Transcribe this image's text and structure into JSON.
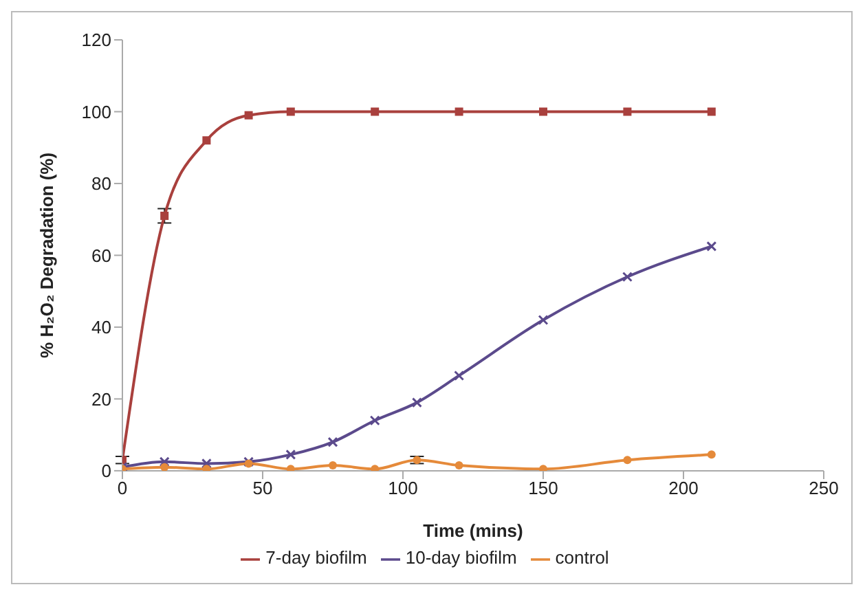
{
  "chart_data": {
    "type": "line",
    "xlabel": "Time (mins)",
    "ylabel": "% H₂O₂ Degradation (%)",
    "xlim": [
      0,
      250
    ],
    "xticks": [
      0,
      50,
      100,
      150,
      200,
      250
    ],
    "ylim": [
      0,
      120
    ],
    "yticks": [
      0,
      20,
      40,
      60,
      80,
      100,
      120
    ],
    "legend": "bottom",
    "series": [
      {
        "name": "7-day biofilm",
        "color": "#a9403d",
        "marker": "square",
        "x": [
          0,
          15,
          30,
          45,
          60,
          90,
          120,
          150,
          180,
          210
        ],
        "values": [
          3,
          71,
          92,
          99,
          100,
          100,
          100,
          100,
          100,
          100
        ],
        "errors": [
          1,
          2,
          null,
          null,
          null,
          null,
          null,
          null,
          null,
          null
        ]
      },
      {
        "name": "10-day biofilm",
        "color": "#5b4a8c",
        "marker": "cross",
        "x": [
          0,
          15,
          30,
          45,
          60,
          75,
          90,
          105,
          120,
          150,
          180,
          210
        ],
        "values": [
          1,
          2.5,
          2,
          2.5,
          4.5,
          8,
          14,
          19,
          26.5,
          42,
          54,
          62.5
        ]
      },
      {
        "name": "control",
        "color": "#e58a3a",
        "marker": "circle",
        "x": [
          0,
          15,
          30,
          45,
          60,
          75,
          90,
          105,
          120,
          150,
          180,
          210
        ],
        "values": [
          0.5,
          1,
          0.5,
          2,
          0.5,
          1.5,
          0.5,
          3,
          1.5,
          0.5,
          3,
          4.5
        ],
        "errors": [
          null,
          null,
          null,
          null,
          null,
          null,
          null,
          1,
          null,
          null,
          null,
          null
        ]
      }
    ]
  }
}
